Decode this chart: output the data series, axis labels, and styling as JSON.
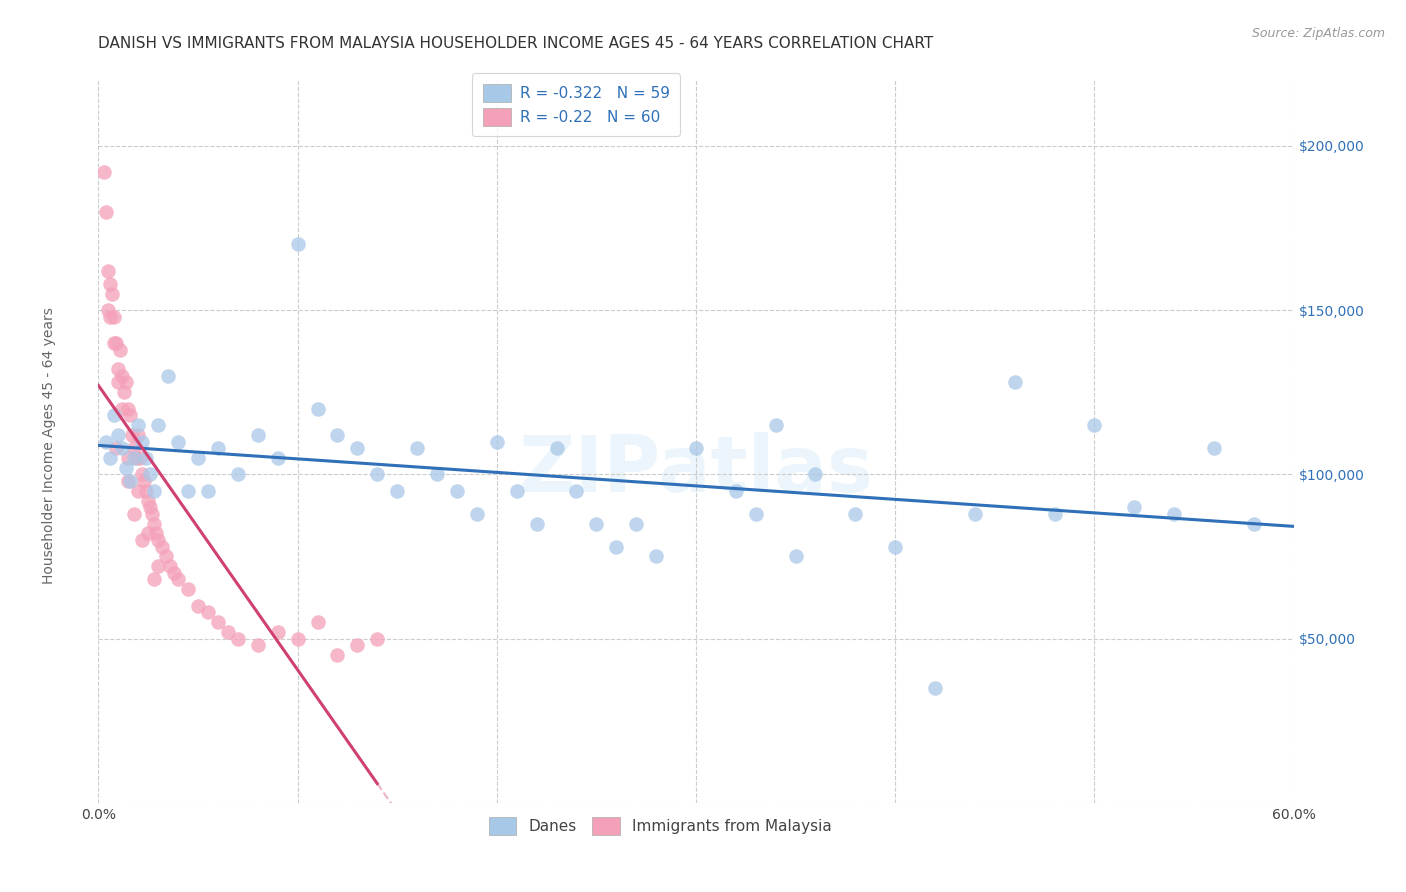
{
  "title": "DANISH VS IMMIGRANTS FROM MALAYSIA HOUSEHOLDER INCOME AGES 45 - 64 YEARS CORRELATION CHART",
  "source": "Source: ZipAtlas.com",
  "ylabel": "Householder Income Ages 45 - 64 years",
  "legend_danes": "Danes",
  "legend_immigrants": "Immigrants from Malaysia",
  "r_danes": -0.322,
  "n_danes": 59,
  "r_immigrants": -0.22,
  "n_immigrants": 60,
  "blue_color": "#a8c8e8",
  "pink_color": "#f4a0b8",
  "blue_line_color": "#3070b8",
  "pink_line_color": "#d04070",
  "danes_x": [
    0.4,
    0.6,
    0.8,
    1.0,
    1.2,
    1.4,
    1.6,
    1.8,
    2.0,
    2.2,
    2.4,
    2.6,
    2.8,
    3.0,
    3.5,
    4.0,
    4.5,
    5.0,
    5.5,
    6.0,
    7.0,
    8.0,
    9.0,
    10.0,
    11.0,
    12.0,
    13.0,
    14.0,
    15.0,
    16.0,
    17.0,
    18.0,
    19.0,
    20.0,
    21.0,
    22.0,
    23.0,
    24.0,
    25.0,
    26.0,
    27.0,
    28.0,
    30.0,
    32.0,
    33.0,
    34.0,
    35.0,
    36.0,
    38.0,
    40.0,
    42.0,
    44.0,
    46.0,
    48.0,
    50.0,
    52.0,
    54.0,
    56.0,
    58.0
  ],
  "danes_y": [
    110000,
    105000,
    118000,
    112000,
    108000,
    102000,
    98000,
    105000,
    115000,
    110000,
    105000,
    100000,
    95000,
    115000,
    130000,
    110000,
    95000,
    105000,
    95000,
    108000,
    100000,
    112000,
    105000,
    170000,
    120000,
    112000,
    108000,
    100000,
    95000,
    108000,
    100000,
    95000,
    88000,
    110000,
    95000,
    85000,
    108000,
    95000,
    85000,
    78000,
    85000,
    75000,
    108000,
    95000,
    88000,
    115000,
    75000,
    100000,
    88000,
    78000,
    35000,
    88000,
    128000,
    88000,
    115000,
    90000,
    88000,
    108000,
    85000
  ],
  "immigrants_x": [
    0.3,
    0.4,
    0.5,
    0.6,
    0.7,
    0.8,
    0.9,
    1.0,
    1.1,
    1.2,
    1.3,
    1.4,
    1.5,
    1.6,
    1.7,
    1.8,
    1.9,
    2.0,
    2.1,
    2.2,
    2.3,
    2.4,
    2.5,
    2.6,
    2.7,
    2.8,
    2.9,
    3.0,
    3.2,
    3.4,
    3.6,
    3.8,
    4.0,
    4.5,
    5.0,
    5.5,
    6.0,
    6.5,
    7.0,
    8.0,
    9.0,
    10.0,
    11.0,
    12.0,
    13.0,
    14.0,
    1.5,
    2.0,
    2.5,
    3.0,
    0.5,
    0.8,
    1.0,
    1.2,
    0.6,
    0.9,
    1.5,
    1.8,
    2.2,
    2.8
  ],
  "immigrants_y": [
    192000,
    180000,
    162000,
    158000,
    155000,
    148000,
    140000,
    132000,
    138000,
    130000,
    125000,
    128000,
    120000,
    118000,
    112000,
    108000,
    105000,
    112000,
    105000,
    100000,
    98000,
    95000,
    92000,
    90000,
    88000,
    85000,
    82000,
    80000,
    78000,
    75000,
    72000,
    70000,
    68000,
    65000,
    60000,
    58000,
    55000,
    52000,
    50000,
    48000,
    52000,
    50000,
    55000,
    45000,
    48000,
    50000,
    105000,
    95000,
    82000,
    72000,
    150000,
    140000,
    128000,
    120000,
    148000,
    108000,
    98000,
    88000,
    80000,
    68000
  ],
  "xmin": 0.0,
  "xmax": 60.0,
  "ymin": 0,
  "ymax": 220000,
  "yticks": [
    0,
    50000,
    100000,
    150000,
    200000
  ],
  "ytick_labels": [
    "",
    "$50,000",
    "$100,000",
    "$150,000",
    "$200,000"
  ],
  "xtick_positions": [
    0.0,
    10.0,
    20.0,
    30.0,
    40.0,
    50.0,
    60.0
  ],
  "xtick_labels": [
    "0.0%",
    "",
    "",
    "",
    "",
    "",
    "60.0%"
  ],
  "grid_color": "#cccccc",
  "background_color": "#ffffff",
  "title_fontsize": 11,
  "axis_label_fontsize": 10,
  "tick_label_fontsize": 10,
  "legend_fontsize": 11
}
